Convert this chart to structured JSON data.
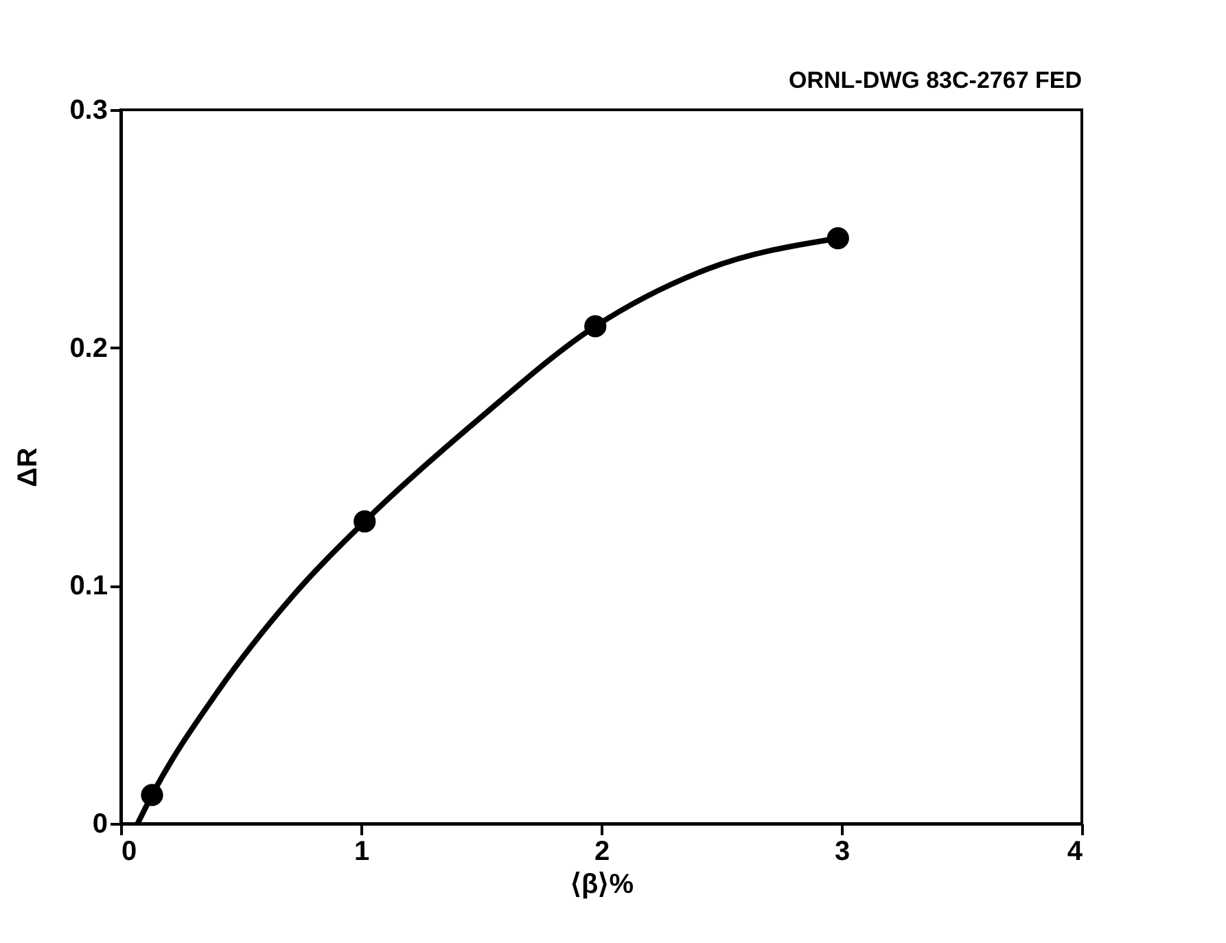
{
  "chart_data": {
    "type": "scatter",
    "xlabel": "⟨β⟩%",
    "ylabel": "ΔR",
    "annotations": [
      "ORNL-DWG 83C-2767 FED"
    ],
    "series": [
      {
        "type": "line",
        "color": "#000000",
        "marker": "none",
        "line_style": "solid",
        "x": [
          0.07,
          0.13,
          0.4,
          0.71,
          1.015,
          1.49,
          1.975,
          2.44,
          2.985
        ],
        "values": [
          0,
          0.012,
          0.055,
          0.095,
          0.127,
          0.17,
          0.209,
          0.233,
          0.246
        ]
      },
      {
        "color": "#000000",
        "marker": "circle",
        "x": [
          0.13,
          1.015,
          1.975,
          2.985
        ],
        "values": [
          0.012,
          0.127,
          0.209,
          0.246
        ]
      }
    ],
    "xlim": [
      0,
      4
    ],
    "xticks": [
      0,
      1,
      2,
      3,
      4
    ],
    "ylim": [
      0,
      0.3
    ],
    "yticks": [
      0,
      0.1,
      0.2,
      0.3
    ],
    "grid": false
  }
}
